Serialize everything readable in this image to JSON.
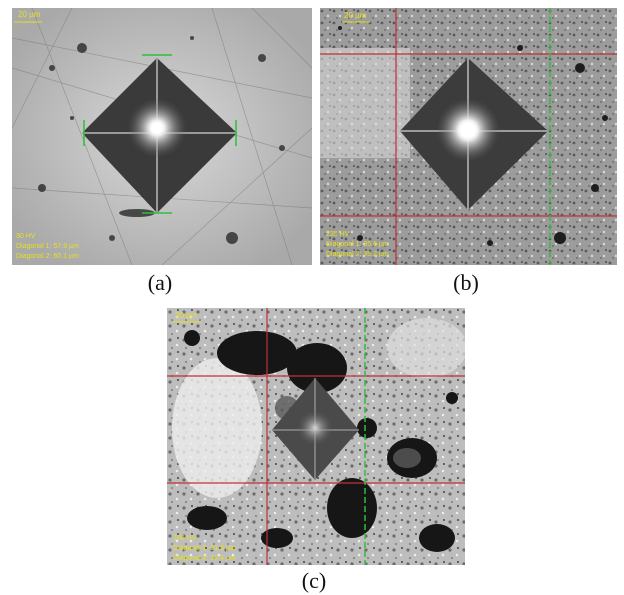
{
  "panels": [
    {
      "caption": "(a)",
      "scale_label": "20 µm",
      "readout": [
        "30 HV",
        "Diagonal 1: 57.9 µm",
        "Diagonal 2: 60.1 µm"
      ]
    },
    {
      "caption": "(b)",
      "scale_label": "20 µm",
      "readout": [
        "235 HV",
        "Diagonal 1: 35.6 µm",
        "Diagonal 2: 35.2 µm"
      ]
    },
    {
      "caption": "(c)",
      "scale_label": "20 µm",
      "readout": [
        "186 HV",
        "Diagonal 1: 31.8 µm",
        "Diagonal 2: 30.4 µm"
      ]
    }
  ],
  "colors": {
    "crosshair_red": "#c0303a",
    "crosshair_green": "#2fbf3a",
    "overlay_yellow": "#e6e020"
  }
}
